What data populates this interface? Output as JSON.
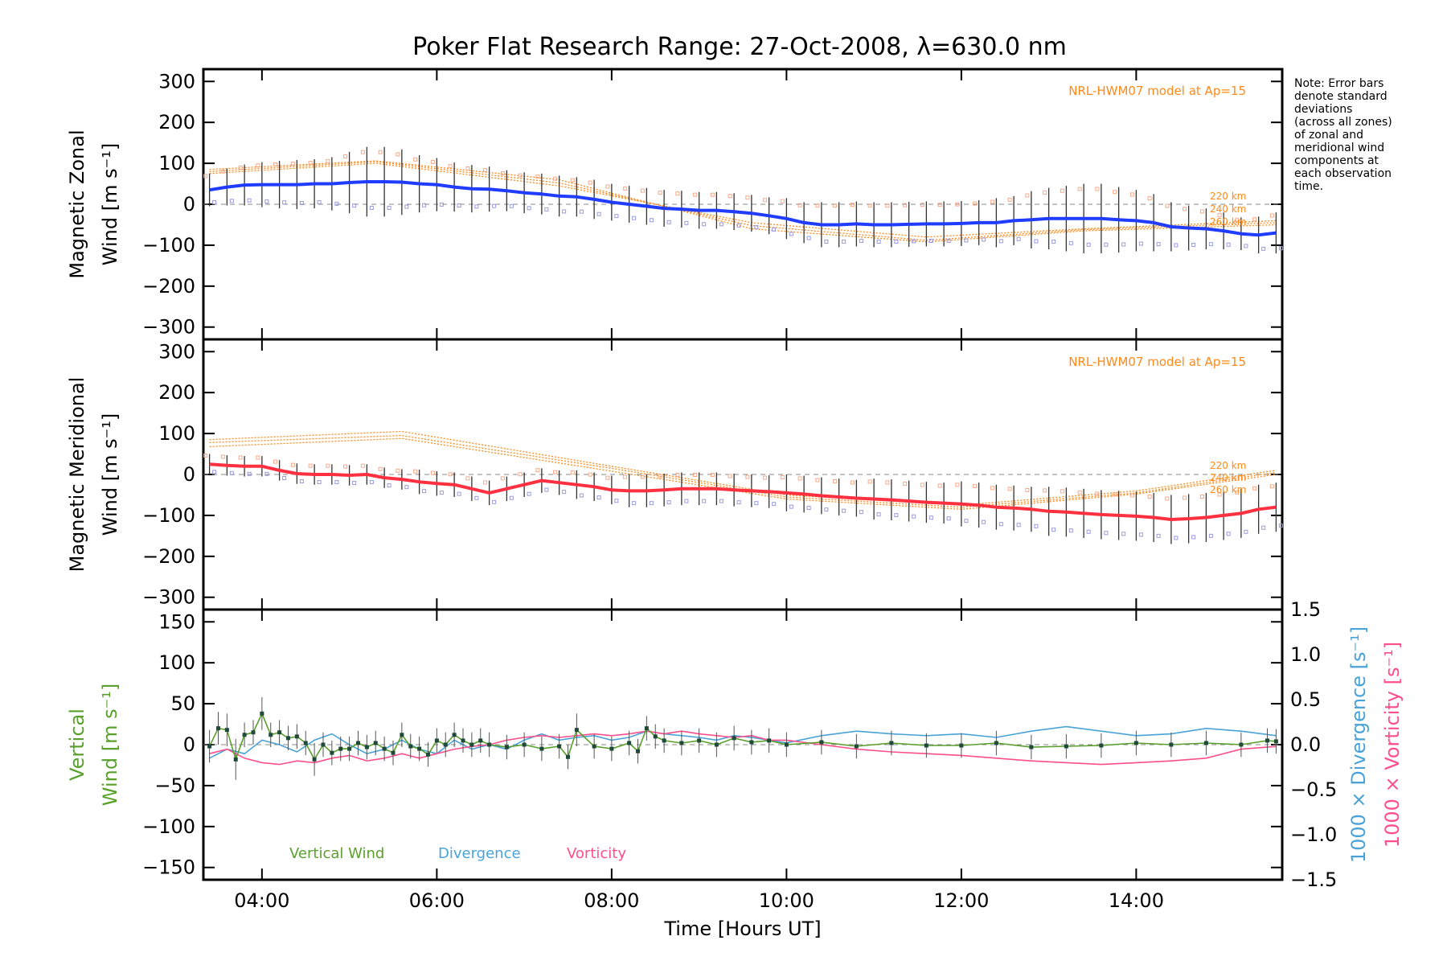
{
  "figure": {
    "title": "Poker Flat Research Range: 27-Oct-2008, λ=630.0 nm",
    "xlabel": "Time [Hours UT]",
    "x_ticks": [
      "04:00",
      "06:00",
      "08:00",
      "10:00",
      "12:00",
      "14:00"
    ],
    "note_lines": [
      "Note: Error bars",
      "denote standard",
      "deviations",
      "(across all zones)",
      "of zonal and",
      "meridional wind",
      "components at",
      "each observation",
      "time."
    ],
    "colors": {
      "zonal_line": "#1f3cff",
      "meridional_line": "#ff3040",
      "model": "#ff8a1a",
      "vertical": "#5aa02c",
      "divergence": "#4aa3d8",
      "vorticity": "#ff4f8b",
      "samples": "#9a9ae0"
    }
  },
  "chart_data": [
    {
      "type": "line",
      "panel": "zonal",
      "ylabel": "Magnetic Zonal Wind [m s⁻¹]",
      "ylabel_lines": [
        "Magnetic Zonal",
        "Wind [m s⁻¹]"
      ],
      "y_ticks": [
        "300",
        "200",
        "100",
        "0",
        "−100",
        "−200",
        "−300"
      ],
      "ylim": [
        -330,
        330
      ],
      "xlim_hours": [
        3.33,
        15.67
      ],
      "model_label": "NRL-HWM07 model at Ap=15",
      "model_altitudes": [
        "220 km",
        "240 km",
        "260 km"
      ],
      "series": [
        {
          "x": [
            3.4,
            3.6,
            3.8,
            4.0,
            4.2,
            4.4,
            4.6,
            4.8,
            5.0,
            5.2,
            5.4,
            5.6,
            5.8,
            6.0,
            6.2,
            6.4,
            6.6,
            6.8,
            7.0,
            7.2,
            7.4,
            7.6,
            7.8,
            8.0,
            8.2,
            8.4,
            8.6,
            8.8,
            9.0,
            9.2,
            9.4,
            9.6,
            9.8,
            10.0,
            10.2,
            10.4,
            10.6,
            10.8,
            11.0,
            11.2,
            11.4,
            11.6,
            11.8,
            12.0,
            12.2,
            12.4,
            12.6,
            12.8,
            13.0,
            13.2,
            13.4,
            13.6,
            13.8,
            14.0,
            14.2,
            14.4,
            14.6,
            14.8,
            15.0,
            15.2,
            15.4,
            15.6
          ],
          "y": [
            35,
            42,
            47,
            48,
            48,
            48,
            50,
            50,
            53,
            55,
            55,
            54,
            50,
            48,
            42,
            38,
            37,
            33,
            28,
            25,
            20,
            18,
            12,
            5,
            0,
            -5,
            -10,
            -12,
            -15,
            -15,
            -18,
            -22,
            -28,
            -35,
            -45,
            -50,
            -50,
            -48,
            -50,
            -50,
            -49,
            -48,
            -48,
            -47,
            -45,
            -45,
            -40,
            -38,
            -35,
            -35,
            -35,
            -35,
            -38,
            -40,
            -45,
            -55,
            -58,
            -60,
            -65,
            -72,
            -75,
            -70
          ],
          "err": [
            40,
            45,
            50,
            55,
            58,
            60,
            60,
            65,
            75,
            85,
            85,
            80,
            70,
            65,
            60,
            58,
            55,
            50,
            50,
            50,
            50,
            48,
            48,
            45,
            45,
            45,
            45,
            45,
            45,
            45,
            45,
            45,
            45,
            50,
            50,
            55,
            55,
            55,
            55,
            55,
            55,
            55,
            55,
            55,
            55,
            60,
            60,
            70,
            75,
            80,
            85,
            85,
            80,
            75,
            70,
            60,
            55,
            50,
            45,
            40,
            45,
            50
          ]
        }
      ],
      "model": [
        {
          "x": [
            3.4,
            5.3,
            7.4,
            9.6,
            11.6,
            13.4,
            15.6
          ],
          "y": [
            75,
            100,
            45,
            -45,
            -80,
            -60,
            -40
          ]
        },
        {
          "x": [
            3.4,
            5.3,
            7.4,
            9.6,
            11.6,
            13.4,
            15.6
          ],
          "y": [
            80,
            104,
            52,
            -52,
            -88,
            -62,
            -45
          ]
        },
        {
          "x": [
            3.4,
            5.3,
            7.4,
            9.6,
            11.6,
            13.4,
            15.6
          ],
          "y": [
            85,
            106,
            60,
            -60,
            -92,
            -65,
            -50
          ]
        }
      ]
    },
    {
      "type": "line",
      "panel": "meridional",
      "ylabel": "Magnetic Meridional Wind [m s⁻¹]",
      "ylabel_lines": [
        "Magnetic Meridional",
        "Wind [m s⁻¹]"
      ],
      "y_ticks": [
        "300",
        "200",
        "100",
        "0",
        "−100",
        "−200",
        "−300"
      ],
      "ylim": [
        -330,
        330
      ],
      "xlim_hours": [
        3.33,
        15.67
      ],
      "model_label": "NRL-HWM07 model at Ap=15",
      "model_altitudes": [
        "220 km",
        "240 km",
        "260 km"
      ],
      "series": [
        {
          "x": [
            3.4,
            3.6,
            3.8,
            4.0,
            4.2,
            4.4,
            4.6,
            4.8,
            5.0,
            5.2,
            5.4,
            5.6,
            5.8,
            6.0,
            6.2,
            6.4,
            6.6,
            6.8,
            7.0,
            7.2,
            7.4,
            7.6,
            7.8,
            8.0,
            8.2,
            8.4,
            8.6,
            8.8,
            9.0,
            9.2,
            9.4,
            9.6,
            9.8,
            10.0,
            10.2,
            10.4,
            10.6,
            10.8,
            11.0,
            11.2,
            11.4,
            11.6,
            11.8,
            12.0,
            12.2,
            12.4,
            12.6,
            12.8,
            13.0,
            13.2,
            13.4,
            13.6,
            13.8,
            14.0,
            14.2,
            14.4,
            14.6,
            14.8,
            15.0,
            15.2,
            15.4,
            15.6
          ],
          "y": [
            25,
            22,
            20,
            20,
            10,
            2,
            0,
            0,
            -2,
            0,
            -8,
            -12,
            -18,
            -22,
            -25,
            -35,
            -45,
            -35,
            -25,
            -15,
            -20,
            -25,
            -30,
            -38,
            -40,
            -40,
            -38,
            -35,
            -35,
            -35,
            -38,
            -40,
            -42,
            -45,
            -48,
            -52,
            -55,
            -58,
            -60,
            -62,
            -65,
            -68,
            -70,
            -72,
            -75,
            -80,
            -82,
            -85,
            -90,
            -92,
            -95,
            -98,
            -100,
            -102,
            -105,
            -110,
            -108,
            -105,
            -100,
            -95,
            -85,
            -80
          ],
          "err": [
            25,
            25,
            25,
            25,
            25,
            25,
            25,
            25,
            25,
            25,
            25,
            25,
            30,
            30,
            30,
            30,
            30,
            30,
            30,
            30,
            30,
            35,
            35,
            35,
            40,
            40,
            40,
            40,
            40,
            40,
            40,
            40,
            40,
            45,
            45,
            45,
            45,
            45,
            50,
            50,
            50,
            50,
            50,
            55,
            55,
            55,
            55,
            55,
            60,
            60,
            60,
            60,
            60,
            60,
            60,
            60,
            60,
            60,
            60,
            60,
            60,
            60
          ]
        }
      ],
      "model": [
        {
          "x": [
            3.4,
            5.6,
            8.0,
            10.0,
            12.0,
            14.0,
            15.6
          ],
          "y": [
            85,
            105,
            20,
            -50,
            -75,
            -40,
            10
          ]
        },
        {
          "x": [
            3.4,
            5.6,
            8.0,
            10.0,
            12.0,
            14.0,
            15.6
          ],
          "y": [
            78,
            95,
            15,
            -55,
            -80,
            -45,
            5
          ]
        },
        {
          "x": [
            3.4,
            5.6,
            8.0,
            10.0,
            12.0,
            14.0,
            15.6
          ],
          "y": [
            68,
            88,
            8,
            -60,
            -85,
            -48,
            0
          ]
        }
      ]
    },
    {
      "type": "line",
      "panel": "vertical",
      "ylabel_lines": [
        "Vertical",
        "Wind [m s⁻¹]"
      ],
      "right_label_divergence": "1000 × Divergence [s⁻¹]",
      "right_label_vorticity": "1000 × Vorticity [s⁻¹]",
      "y_ticks": [
        "150",
        "100",
        "50",
        "0",
        "−50",
        "−100",
        "−150"
      ],
      "y2_ticks": [
        "1.5",
        "1.0",
        "0.5",
        "0.0",
        "−0.5",
        "−1.0",
        "−1.5"
      ],
      "ylim": [
        -165,
        165
      ],
      "y2lim": [
        -1.5,
        1.5
      ],
      "xlim_hours": [
        3.33,
        15.67
      ],
      "legend": [
        "Vertical Wind",
        "Divergence",
        "Vorticity"
      ],
      "vertical_wind": {
        "x": [
          3.4,
          3.5,
          3.6,
          3.7,
          3.8,
          3.9,
          4.0,
          4.1,
          4.2,
          4.3,
          4.4,
          4.5,
          4.6,
          4.7,
          4.8,
          4.9,
          5.0,
          5.1,
          5.2,
          5.3,
          5.4,
          5.5,
          5.6,
          5.7,
          5.8,
          5.9,
          6.0,
          6.1,
          6.2,
          6.3,
          6.4,
          6.5,
          6.6,
          6.8,
          7.0,
          7.2,
          7.4,
          7.5,
          7.6,
          7.8,
          8.0,
          8.2,
          8.3,
          8.4,
          8.5,
          8.6,
          8.8,
          9.0,
          9.2,
          9.4,
          9.6,
          9.8,
          10.0,
          10.4,
          10.8,
          11.2,
          11.6,
          12.0,
          12.4,
          12.8,
          13.2,
          13.6,
          14.0,
          14.4,
          14.8,
          15.2,
          15.5,
          15.6
        ],
        "y": [
          -2,
          20,
          18,
          -18,
          12,
          15,
          38,
          12,
          15,
          8,
          10,
          2,
          -18,
          0,
          -10,
          -5,
          -5,
          2,
          -3,
          2,
          -5,
          -10,
          12,
          -2,
          -5,
          -12,
          5,
          0,
          12,
          5,
          0,
          5,
          0,
          -3,
          0,
          -5,
          -2,
          -15,
          18,
          -2,
          -5,
          2,
          -8,
          20,
          10,
          5,
          2,
          5,
          0,
          8,
          3,
          5,
          0,
          3,
          -2,
          2,
          -1,
          -1,
          2,
          -3,
          -2,
          -1,
          2,
          0,
          2,
          0,
          5,
          4
        ],
        "err": [
          20,
          20,
          20,
          25,
          15,
          15,
          20,
          15,
          15,
          15,
          15,
          15,
          20,
          15,
          15,
          15,
          15,
          15,
          15,
          15,
          15,
          15,
          15,
          15,
          15,
          15,
          15,
          15,
          15,
          15,
          15,
          15,
          15,
          15,
          15,
          15,
          15,
          15,
          20,
          15,
          15,
          15,
          15,
          15,
          15,
          15,
          15,
          15,
          15,
          15,
          15,
          15,
          15,
          15,
          15,
          15,
          15,
          15,
          15,
          15,
          15,
          15,
          15,
          15,
          15,
          15,
          15,
          15
        ]
      },
      "divergence": {
        "x": [
          3.4,
          3.6,
          3.8,
          4.0,
          4.2,
          4.4,
          4.6,
          4.8,
          5.0,
          5.2,
          5.4,
          5.6,
          5.8,
          6.0,
          6.2,
          6.4,
          6.6,
          6.8,
          7.0,
          7.2,
          7.4,
          7.6,
          7.8,
          8.0,
          8.2,
          8.4,
          8.6,
          8.8,
          9.0,
          9.2,
          9.4,
          9.6,
          9.8,
          10.0,
          10.4,
          10.8,
          11.2,
          11.6,
          12.0,
          12.4,
          12.8,
          13.2,
          13.6,
          14.0,
          14.4,
          14.8,
          15.2,
          15.6
        ],
        "y": [
          -0.15,
          -0.05,
          -0.1,
          0.05,
          0.0,
          -0.08,
          0.05,
          0.12,
          0.0,
          -0.1,
          -0.05,
          0.05,
          -0.05,
          -0.1,
          0.05,
          -0.05,
          0.0,
          -0.05,
          0.05,
          0.12,
          0.05,
          0.08,
          0.1,
          0.05,
          0.08,
          0.15,
          0.12,
          0.1,
          0.08,
          0.05,
          0.1,
          0.08,
          0.05,
          0.02,
          0.1,
          0.15,
          0.12,
          0.1,
          0.12,
          0.08,
          0.15,
          0.2,
          0.15,
          0.1,
          0.12,
          0.18,
          0.15,
          0.1
        ]
      },
      "vorticity": {
        "x": [
          3.4,
          3.6,
          3.8,
          4.0,
          4.2,
          4.4,
          4.6,
          4.8,
          5.0,
          5.2,
          5.4,
          5.6,
          5.8,
          6.0,
          6.2,
          6.4,
          6.6,
          6.8,
          7.0,
          7.2,
          7.4,
          7.6,
          7.8,
          8.0,
          8.2,
          8.4,
          8.6,
          8.8,
          9.0,
          9.2,
          9.4,
          9.6,
          9.8,
          10.0,
          10.4,
          10.8,
          11.2,
          11.6,
          12.0,
          12.4,
          12.8,
          13.2,
          13.6,
          14.0,
          14.4,
          14.8,
          15.2,
          15.6
        ],
        "y": [
          -0.1,
          -0.05,
          -0.15,
          -0.2,
          -0.22,
          -0.18,
          -0.2,
          -0.15,
          -0.12,
          -0.18,
          -0.15,
          -0.1,
          -0.15,
          -0.1,
          -0.05,
          -0.02,
          0.0,
          0.05,
          0.08,
          0.1,
          0.08,
          0.1,
          0.12,
          0.1,
          0.12,
          0.15,
          0.12,
          0.15,
          0.12,
          0.1,
          0.08,
          0.1,
          0.05,
          0.05,
          0.0,
          -0.05,
          -0.08,
          -0.1,
          -0.12,
          -0.15,
          -0.18,
          -0.2,
          -0.22,
          -0.2,
          -0.18,
          -0.15,
          -0.05,
          -0.02
        ]
      }
    }
  ]
}
